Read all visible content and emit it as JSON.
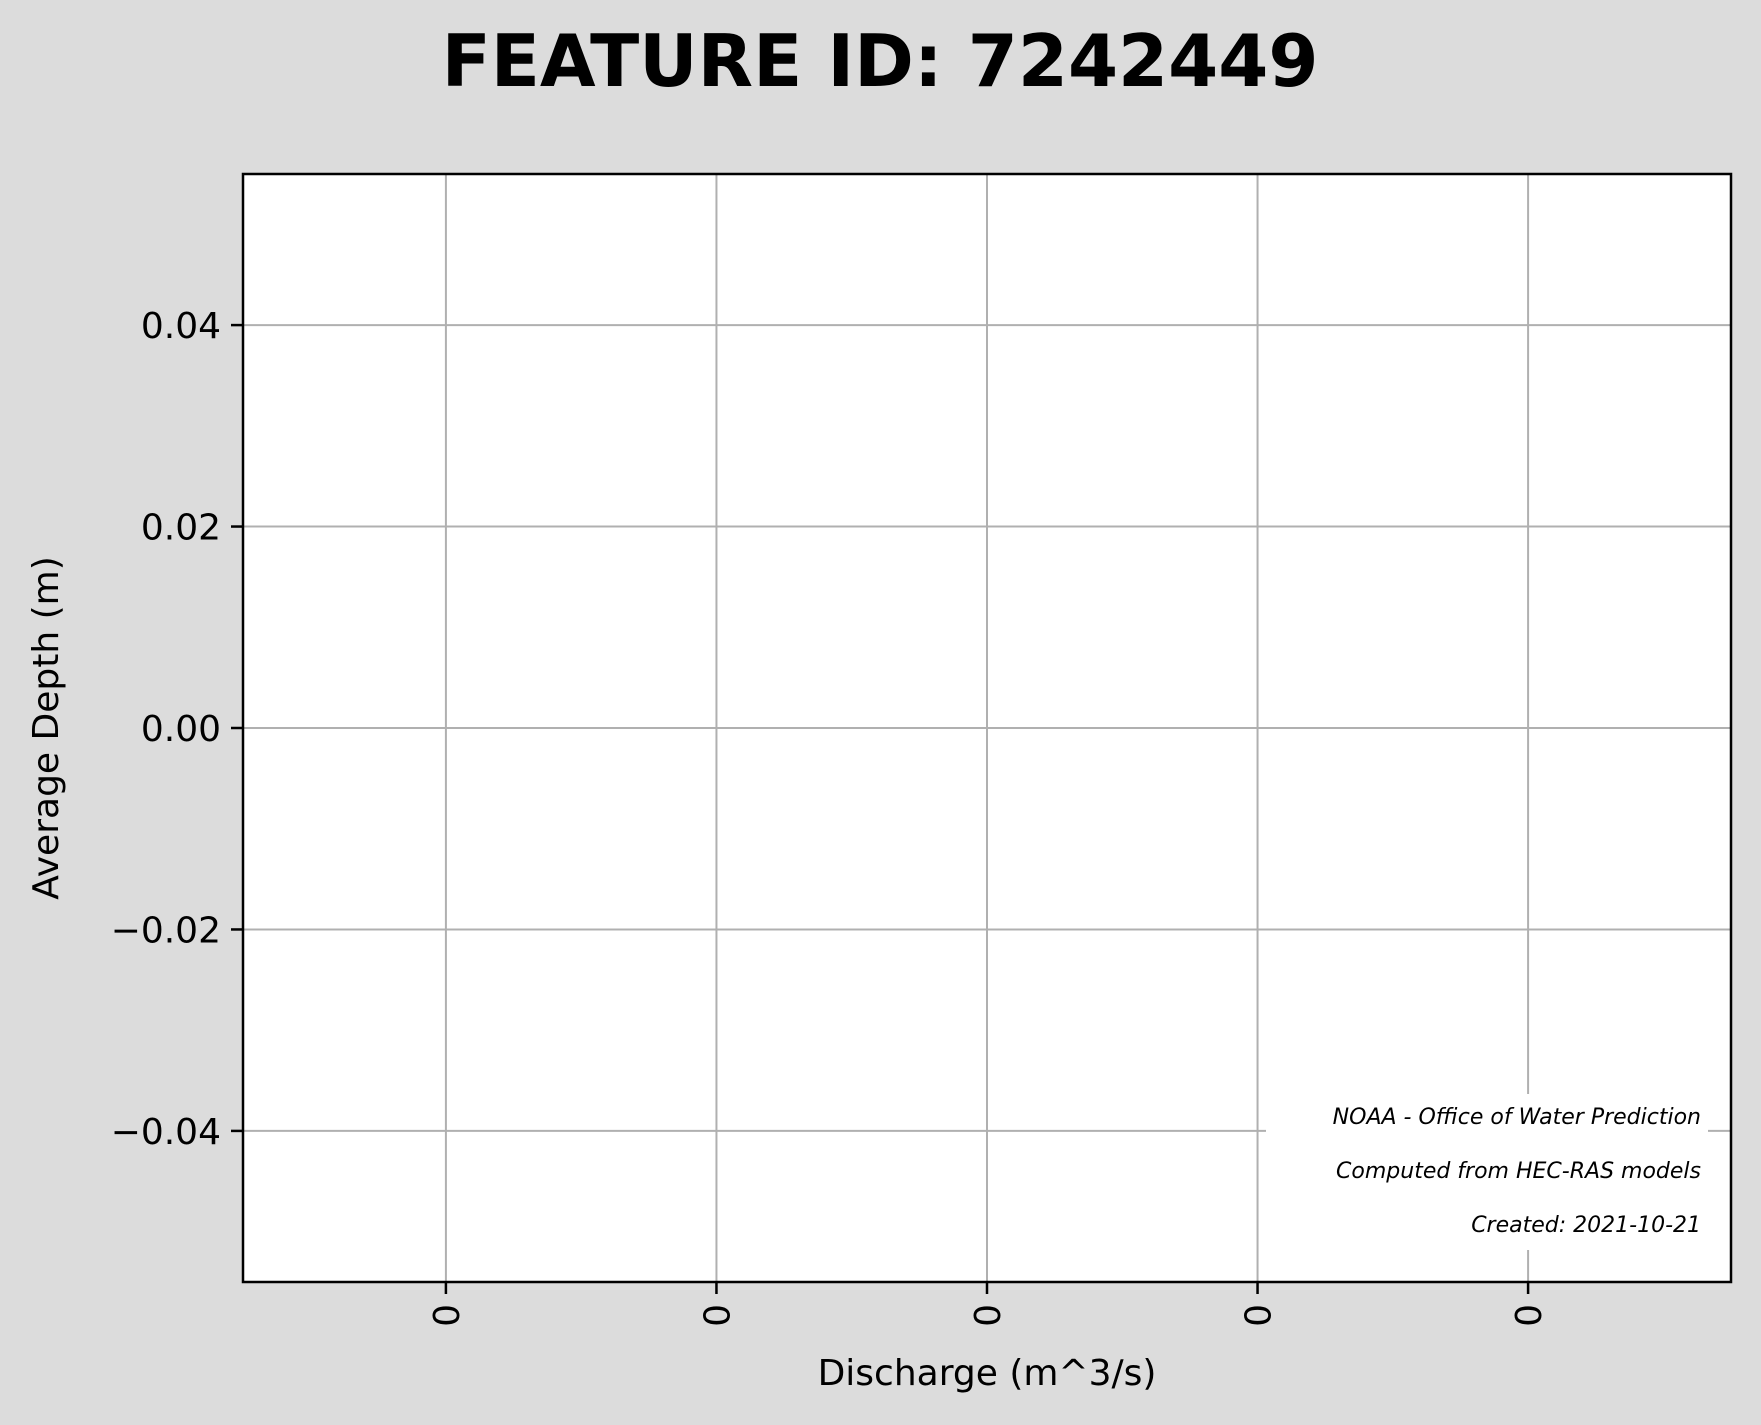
{
  "chart_data": {
    "type": "line",
    "title": "FEATURE ID: 7242449",
    "xlabel": "Discharge (m^3/s)",
    "ylabel": "Average Depth (m)",
    "ylim": [
      -0.055,
      0.055
    ],
    "y_ticks": [
      0.04,
      0.02,
      0.0,
      -0.02,
      -0.04
    ],
    "y_tick_labels": [
      "0.04",
      "0.02",
      "0.00",
      "−0.02",
      "−0.04"
    ],
    "x_ticks": [
      1,
      2,
      3,
      4,
      5
    ],
    "x_tick_labels": [
      "0",
      "0",
      "0",
      "0",
      "0"
    ],
    "xlim": [
      0.25,
      5.75
    ],
    "grid": true,
    "series": [],
    "annotations": [
      "NOAA - Office of Water Prediction",
      "Computed from HEC-RAS models",
      "Created: 2021-10-21"
    ],
    "colors": {
      "background": "#dcdcdc",
      "plot_background": "#ffffff",
      "grid": "#b0b0b0",
      "axes": "#000000"
    }
  }
}
